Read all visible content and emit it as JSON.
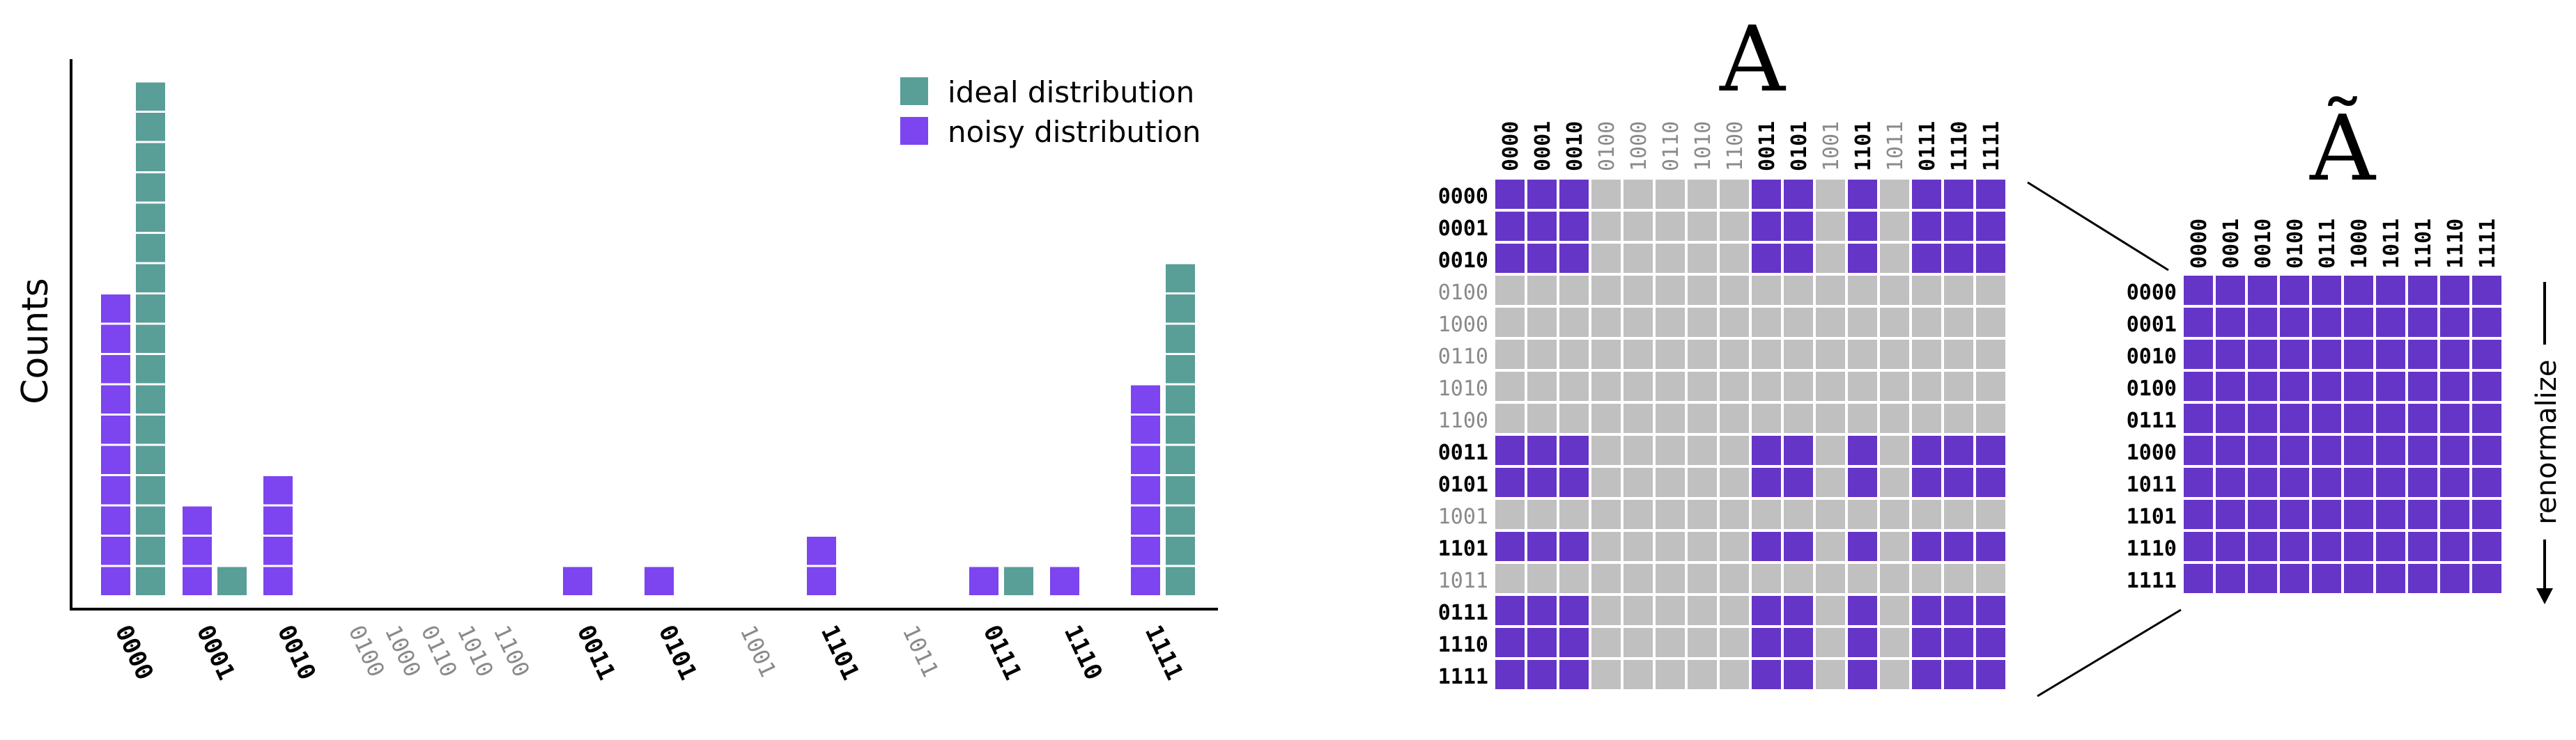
{
  "colors": {
    "ideal": "#5a9e98",
    "noisy": "#7c45f0",
    "matrix_on": "#6535c8",
    "matrix_off": "#c0c0c0",
    "label_dim": "#8a8a8a",
    "label_bold": "#000000"
  },
  "chart_data": {
    "type": "bar",
    "ylabel": "Counts",
    "categories": [
      "0000",
      "0001",
      "0010",
      "0100",
      "1000",
      "0110",
      "1010",
      "1100",
      "0011",
      "0101",
      "1001",
      "1101",
      "1011",
      "0111",
      "1110",
      "1111"
    ],
    "highlighted": [
      true,
      true,
      true,
      false,
      false,
      false,
      false,
      false,
      true,
      true,
      false,
      true,
      false,
      true,
      true,
      true
    ],
    "series": [
      {
        "name": "ideal distribution",
        "values": [
          17,
          1,
          0,
          0,
          0,
          0,
          0,
          0,
          0,
          0,
          0,
          0,
          0,
          1,
          0,
          11
        ]
      },
      {
        "name": "noisy distribution",
        "values": [
          10,
          3,
          4,
          0,
          0,
          0,
          0,
          0,
          1,
          1,
          0,
          2,
          0,
          1,
          1,
          7
        ]
      }
    ],
    "grouping": [
      {
        "label_index": 0,
        "noisy_index": 0,
        "ideal_index": 0
      },
      {
        "label_index": 1,
        "noisy_index": 1,
        "ideal_index": 1
      },
      {
        "label_index": 2,
        "noisy_index": 2,
        "ideal_index": 2
      },
      {
        "label_index": 8,
        "noisy_index": 8,
        "ideal_index": 8
      },
      {
        "label_index": 9,
        "noisy_index": 9,
        "ideal_index": 9
      },
      {
        "label_index": 11,
        "noisy_index": 11,
        "ideal_index": 11
      },
      {
        "label_index": 13,
        "noisy_index": 13,
        "ideal_index": 13
      },
      {
        "label_index": 14,
        "noisy_index": 14,
        "ideal_index": 14
      },
      {
        "label_index": 15,
        "noisy_index": 15,
        "ideal_index": 15
      }
    ]
  },
  "matrix_A": {
    "title": "A",
    "labels": [
      "0000",
      "0001",
      "0010",
      "0100",
      "1000",
      "0110",
      "1010",
      "1100",
      "0011",
      "0101",
      "1001",
      "1101",
      "1011",
      "0111",
      "1110",
      "1111"
    ],
    "active": [
      true,
      true,
      true,
      false,
      false,
      false,
      false,
      false,
      true,
      true,
      false,
      true,
      false,
      true,
      true,
      true
    ]
  },
  "matrix_A_tilde": {
    "title": "Ã",
    "labels": [
      "0000",
      "0001",
      "0010",
      "0100",
      "0111",
      "1000",
      "1011",
      "1101",
      "1110",
      "1111"
    ]
  },
  "renormalize_label": "renormalize"
}
